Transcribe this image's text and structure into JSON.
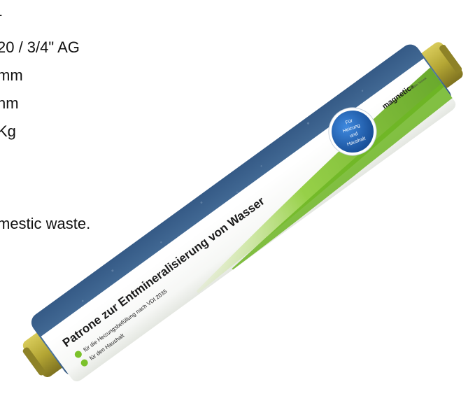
{
  "specs": {
    "lines": [
      "-",
      "20 / 3/4\" AG",
      "mm",
      "nm",
      "Kg",
      "mestic waste."
    ]
  },
  "cartridge": {
    "title": "Patrone zur Entmineralisierung von Wasser",
    "bullet_1": "für die Heizungsbefüllung nach VDI 2035",
    "bullet_2": "für den Haushalt",
    "brand": "magnetic",
    "brand_suffix": "®",
    "brand_sub": "aktiv Technik",
    "badge_line_1": "Für",
    "badge_line_2": "Heizung",
    "badge_line_3": "und",
    "badge_line_4": "Haushalt"
  },
  "colors": {
    "cartridge_blue": "#3f6791",
    "accent_green": "#7bc12a",
    "badge_blue": "#1f5fae",
    "cap_brass": "#b4a634"
  }
}
